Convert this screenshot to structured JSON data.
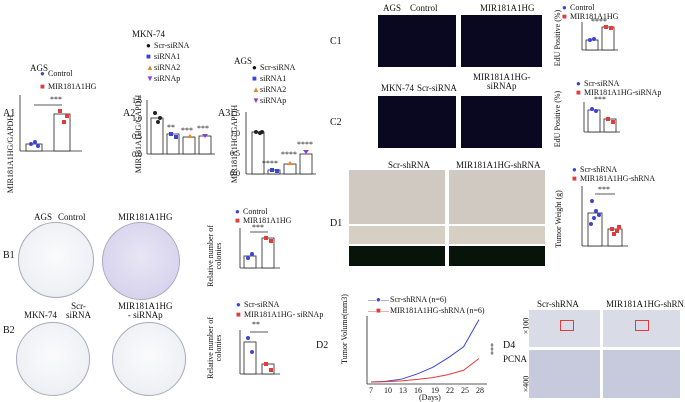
{
  "colors": {
    "blue": "#3b44d9",
    "red": "#e23b3b",
    "purple": "#8a3fd1",
    "orange": "#e2872b",
    "green": "#1fa12a",
    "black": "#222222"
  },
  "A1": {
    "label": "A1",
    "cell": "AGS",
    "ylabel": "MIR181A1HG/GAPDH",
    "sig": "***",
    "legend": [
      "Control",
      "MIR181A1HG"
    ],
    "chart_data": {
      "type": "bar",
      "categories": [
        "Control",
        "MIR181A1HG"
      ],
      "values": [
        1.0,
        5.4
      ],
      "ylim": [
        0,
        8
      ]
    }
  },
  "A2": {
    "label": "A2",
    "cell": "MKN-74",
    "ylabel": "MIR181A1HG/GAPDH",
    "legend": [
      "Scr-siRNA",
      "siRNA1",
      "siRNA2",
      "siRNAp"
    ],
    "ticks": [
      "0.0",
      "0.5",
      "1.0",
      "1.5"
    ],
    "sigs": [
      "**",
      "***",
      "***"
    ],
    "chart_data": {
      "type": "bar",
      "categories": [
        "Scr-siRNA",
        "siRNA1",
        "siRNA2",
        "siRNAp"
      ],
      "values": [
        1.0,
        0.55,
        0.48,
        0.5
      ],
      "ylim": [
        0,
        1.5
      ]
    }
  },
  "A3": {
    "label": "A3",
    "cell": "AGS",
    "ylabel": "MIR181A1HG/GAPDH",
    "legend": [
      "Scr-siRNA",
      "siRNA1",
      "siRNA2",
      "siRNAp"
    ],
    "ticks": [
      "0.0",
      "0.5",
      "1.0",
      "1.5"
    ],
    "sigs": [
      "****",
      "****",
      "****"
    ],
    "chart_data": {
      "type": "bar",
      "categories": [
        "Scr-siRNA",
        "siRNA1",
        "siRNA2",
        "siRNAp"
      ],
      "values": [
        1.0,
        0.1,
        0.22,
        0.42
      ],
      "ylim": [
        0,
        1.5
      ]
    }
  },
  "B1": {
    "label": "B1",
    "cell": "AGS",
    "cond1": "Control",
    "cond2": "MIR181A1HG",
    "ylabel": "Relative number of colonies",
    "sig": "***",
    "legend": [
      "Control",
      "MIR181A1HG"
    ],
    "chart_data": {
      "type": "bar",
      "categories": [
        "Control",
        "MIR181A1HG"
      ],
      "values": [
        100,
        225
      ],
      "ylim": [
        0,
        300
      ]
    }
  },
  "B2": {
    "label": "B2",
    "cell": "MKN-74",
    "cond1": "Scr-\nsiRNA",
    "cond2": "MIR181A1HG\n- siRNAp",
    "ylabel": "Relative number of colonies",
    "sig": "**",
    "legend": [
      "Scr-siRNA",
      "MIR181A1HG- siRNAp"
    ],
    "chart_data": {
      "type": "bar",
      "categories": [
        "Scr-siRNA",
        "MIR181A1HG- siRNAp"
      ],
      "values": [
        100,
        32
      ],
      "ylim": [
        0,
        150
      ]
    }
  },
  "C1": {
    "label": "C1",
    "cell": "AGS",
    "cond1": "Control",
    "cond2": "MIR181A1HG",
    "ylabel": "EdU Positive (%)",
    "sig": "****",
    "legend": [
      "Control",
      "MIR181A1HG"
    ],
    "chart_data": {
      "type": "bar",
      "categories": [
        "Control",
        "MIR181A1HG"
      ],
      "values": [
        100,
        150
      ],
      "ylim": [
        0,
        200
      ]
    }
  },
  "C2": {
    "label": "C2",
    "cell": "MKN-74",
    "cond1": "Scr-siRNA",
    "cond2": "MIR181A1HG-\nsiRNAp",
    "ylabel": "EdU Positive (%)",
    "sig": "***",
    "legend": [
      "Scr-siRNA",
      "MIR181A1HG-siRNAp"
    ],
    "chart_data": {
      "type": "bar",
      "categories": [
        "Scr-siRNA",
        "MIR181A1HG-siRNAp"
      ],
      "values": [
        100,
        62
      ],
      "ylim": [
        0,
        150
      ]
    }
  },
  "D1": {
    "label": "D1",
    "cond1": "Scr-shRNA",
    "cond2": "MIR181A1HG-shRNA"
  },
  "D2": {
    "label": "D2",
    "ylabel": "Tumor Volume(mm3)",
    "xlabel": "(Days)",
    "sig": "***",
    "legend": [
      "Scr-shRNA (n=6)",
      "MIR181A1HG-shRNA (n=6)"
    ],
    "ticks": [
      "7",
      "10",
      "13",
      "16",
      "19",
      "22",
      "25",
      "28"
    ],
    "chart_data": {
      "type": "line",
      "x": [
        7,
        10,
        13,
        16,
        19,
        22,
        25,
        28
      ],
      "series": [
        {
          "name": "Scr-shRNA (n=6)",
          "values": [
            0,
            10,
            40,
            110,
            200,
            330,
            480,
            850
          ]
        },
        {
          "name": "MIR181A1HG-shRNA (n=6)",
          "values": [
            0,
            5,
            15,
            35,
            60,
            100,
            160,
            320
          ]
        }
      ]
    }
  },
  "D3": {
    "label": "D3",
    "ylabel": "Tumor Weight (g)",
    "sig": "***",
    "legend": [
      "Scr-shRNA",
      "MIR181A1HG-shRNA"
    ],
    "chart_data": {
      "type": "bar",
      "categories": [
        "Scr-shRNA",
        "MIR181A1HG-shRNA"
      ],
      "values": [
        0.55,
        0.28
      ],
      "ylim": [
        0,
        1.0
      ]
    }
  },
  "D4": {
    "label": "D4",
    "cond1": "Scr-shRNA",
    "cond2": "MIR181A1HG-shRNA",
    "marker": "PCNA",
    "mag1": "×100",
    "mag2": "×400"
  }
}
